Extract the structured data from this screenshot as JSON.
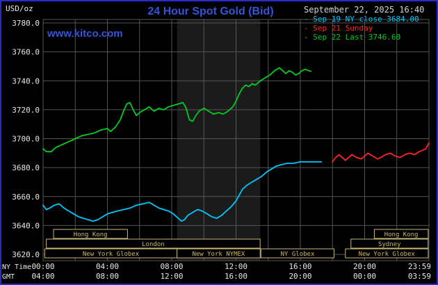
{
  "header": {
    "units": "USD/oz",
    "title": "24 Hour Spot Gold (Bid)",
    "watermark": "www.kitco.com",
    "datetime": "September 22, 2025 16:40"
  },
  "legend": [
    {
      "bullet": "-",
      "label": "Sep 19 NY close 3684.00",
      "color": "#00c8ff"
    },
    {
      "bullet": "-",
      "label": "Sep 21 Sunday",
      "color": "#ff2626"
    },
    {
      "bullet": "-",
      "label": "Sep 22 Last 3746.60",
      "color": "#00cc22"
    }
  ],
  "colors": {
    "accent_blue": "#3355dd",
    "date_text": "#d4d4d4",
    "axis_text": "#e8e8e8",
    "grid": "#565656",
    "session": "#c9b873",
    "band": "#1b1b1b",
    "border_blue": "#2a2ac8",
    "background": "#000000"
  },
  "axes": {
    "ny_label": "NY Time",
    "gmt_label": "GMT",
    "y_ticks": [
      "3780.0",
      "3760.0",
      "3740.0",
      "3720.0",
      "3700.0",
      "3680.0",
      "3660.0",
      "3640.0",
      "3620.0"
    ],
    "x_ticks": [
      {
        "h": 0,
        "ny": "00:00",
        "gmt": "04:00"
      },
      {
        "h": 4,
        "ny": "04:00",
        "gmt": "08:00"
      },
      {
        "h": 8,
        "ny": "08:00",
        "gmt": "12:00"
      },
      {
        "h": 12,
        "ny": "12:00",
        "gmt": "16:00"
      },
      {
        "h": 16,
        "ny": "16:00",
        "gmt": "20:00"
      },
      {
        "h": 20,
        "ny": "20:00",
        "gmt": "00:00"
      },
      {
        "h": 23.983,
        "ny": "23:59",
        "gmt": "03:59",
        "align": "end"
      }
    ]
  },
  "sessions": [
    {
      "row": 0,
      "label": "Hong Kong",
      "from": 0.65,
      "to": 5.25
    },
    {
      "row": 0,
      "label": "Hong Kong",
      "from": 20.6,
      "to": 23.95
    },
    {
      "row": 1,
      "label": "London",
      "from": 0.2,
      "to": 13.5
    },
    {
      "row": 1,
      "label": "Sydney",
      "from": 19.15,
      "to": 23.95
    },
    {
      "row": 2,
      "label": "New York Globex",
      "from": 0.1,
      "to": 8.33
    },
    {
      "row": 2,
      "label": "New York NYMEX",
      "from": 8.33,
      "to": 13.5
    },
    {
      "row": 2,
      "label": "NY Globex",
      "from": 13.55,
      "to": 18.1
    },
    {
      "row": 2,
      "label": "New York Globex",
      "from": 18.8,
      "to": 23.95
    }
  ],
  "chart_data": {
    "type": "line",
    "title": "24 Hour Spot Gold (Bid)",
    "ylabel": "USD/oz",
    "xlabel": "NY Time (hours 0-24)",
    "ylim": [
      3620,
      3780
    ],
    "xlim_hours": [
      0,
      24
    ],
    "grid": true,
    "legend_position": "top-right",
    "band": {
      "from": 8.33,
      "to": 13.5,
      "note": "New York NYMEX session shading"
    },
    "series": [
      {
        "id": "sep19",
        "name": "Sep 19 NY close",
        "close": 3684.0,
        "color": "#00c8ff",
        "points": [
          [
            0,
            3654
          ],
          [
            0.2,
            3651
          ],
          [
            0.4,
            3652
          ],
          [
            0.7,
            3654
          ],
          [
            1,
            3655
          ],
          [
            1.3,
            3652
          ],
          [
            1.6,
            3650
          ],
          [
            1.9,
            3648
          ],
          [
            2.2,
            3646
          ],
          [
            2.5,
            3645
          ],
          [
            2.8,
            3644
          ],
          [
            3.1,
            3643
          ],
          [
            3.4,
            3644
          ],
          [
            3.7,
            3646
          ],
          [
            4,
            3648
          ],
          [
            4.3,
            3649
          ],
          [
            4.6,
            3650
          ],
          [
            5,
            3651
          ],
          [
            5.4,
            3652
          ],
          [
            5.8,
            3654
          ],
          [
            6.2,
            3655
          ],
          [
            6.6,
            3656
          ],
          [
            6.9,
            3654
          ],
          [
            7.2,
            3652
          ],
          [
            7.5,
            3651
          ],
          [
            7.8,
            3650
          ],
          [
            8.1,
            3648
          ],
          [
            8.4,
            3645
          ],
          [
            8.6,
            3643
          ],
          [
            8.8,
            3644
          ],
          [
            9,
            3647
          ],
          [
            9.3,
            3649
          ],
          [
            9.6,
            3651
          ],
          [
            9.9,
            3650
          ],
          [
            10.2,
            3648
          ],
          [
            10.5,
            3646
          ],
          [
            10.8,
            3645
          ],
          [
            11.1,
            3647
          ],
          [
            11.4,
            3650
          ],
          [
            11.7,
            3653
          ],
          [
            12,
            3657
          ],
          [
            12.2,
            3661
          ],
          [
            12.4,
            3665
          ],
          [
            12.7,
            3668
          ],
          [
            13,
            3670
          ],
          [
            13.3,
            3672
          ],
          [
            13.6,
            3674
          ],
          [
            13.9,
            3677
          ],
          [
            14.2,
            3679
          ],
          [
            14.5,
            3681
          ],
          [
            14.8,
            3682
          ],
          [
            15.2,
            3683
          ],
          [
            15.6,
            3683
          ],
          [
            16,
            3684
          ],
          [
            16.5,
            3684
          ],
          [
            17,
            3684
          ],
          [
            17.3,
            3684
          ]
        ]
      },
      {
        "id": "sep21",
        "name": "Sep 21 Sunday",
        "color": "#ff2626",
        "points": [
          [
            18,
            3684
          ],
          [
            18.2,
            3687
          ],
          [
            18.4,
            3689
          ],
          [
            18.6,
            3687
          ],
          [
            18.8,
            3685
          ],
          [
            19,
            3687
          ],
          [
            19.2,
            3689
          ],
          [
            19.5,
            3687
          ],
          [
            19.8,
            3686
          ],
          [
            20,
            3688
          ],
          [
            20.2,
            3690
          ],
          [
            20.5,
            3688
          ],
          [
            20.8,
            3686
          ],
          [
            21,
            3687
          ],
          [
            21.3,
            3689
          ],
          [
            21.6,
            3690
          ],
          [
            21.9,
            3688
          ],
          [
            22.2,
            3687
          ],
          [
            22.5,
            3689
          ],
          [
            22.8,
            3690
          ],
          [
            23.1,
            3689
          ],
          [
            23.4,
            3691
          ],
          [
            23.6,
            3692
          ],
          [
            23.8,
            3693
          ],
          [
            24,
            3697
          ]
        ]
      },
      {
        "id": "sep22",
        "name": "Sep 22 Last",
        "last": 3746.6,
        "color": "#00cc22",
        "points": [
          [
            0,
            3693
          ],
          [
            0.2,
            3691
          ],
          [
            0.5,
            3691
          ],
          [
            0.8,
            3694
          ],
          [
            1.2,
            3696
          ],
          [
            1.6,
            3698
          ],
          [
            2,
            3700
          ],
          [
            2.4,
            3702
          ],
          [
            2.8,
            3703
          ],
          [
            3.2,
            3704
          ],
          [
            3.6,
            3706
          ],
          [
            4,
            3707
          ],
          [
            4.2,
            3705
          ],
          [
            4.5,
            3708
          ],
          [
            4.8,
            3713
          ],
          [
            5,
            3719
          ],
          [
            5.2,
            3724
          ],
          [
            5.4,
            3725
          ],
          [
            5.6,
            3720
          ],
          [
            5.8,
            3716
          ],
          [
            6,
            3718
          ],
          [
            6.3,
            3720
          ],
          [
            6.6,
            3722
          ],
          [
            6.9,
            3719
          ],
          [
            7.2,
            3721
          ],
          [
            7.5,
            3720
          ],
          [
            7.8,
            3722
          ],
          [
            8.1,
            3723
          ],
          [
            8.4,
            3724
          ],
          [
            8.7,
            3725
          ],
          [
            8.9,
            3721
          ],
          [
            9.1,
            3713
          ],
          [
            9.3,
            3712
          ],
          [
            9.5,
            3716
          ],
          [
            9.7,
            3719
          ],
          [
            10,
            3721
          ],
          [
            10.3,
            3719
          ],
          [
            10.6,
            3717
          ],
          [
            10.9,
            3718
          ],
          [
            11.2,
            3717
          ],
          [
            11.5,
            3719
          ],
          [
            11.8,
            3722
          ],
          [
            12,
            3726
          ],
          [
            12.2,
            3731
          ],
          [
            12.4,
            3735
          ],
          [
            12.6,
            3737
          ],
          [
            12.8,
            3736
          ],
          [
            13,
            3738
          ],
          [
            13.2,
            3737
          ],
          [
            13.5,
            3740
          ],
          [
            13.8,
            3742
          ],
          [
            14.1,
            3744
          ],
          [
            14.4,
            3747
          ],
          [
            14.7,
            3749
          ],
          [
            14.9,
            3747
          ],
          [
            15.1,
            3745
          ],
          [
            15.3,
            3747
          ],
          [
            15.5,
            3746
          ],
          [
            15.7,
            3744
          ],
          [
            15.9,
            3745
          ],
          [
            16.1,
            3747
          ],
          [
            16.3,
            3748
          ],
          [
            16.5,
            3747
          ],
          [
            16.67,
            3746.6
          ]
        ]
      }
    ]
  }
}
